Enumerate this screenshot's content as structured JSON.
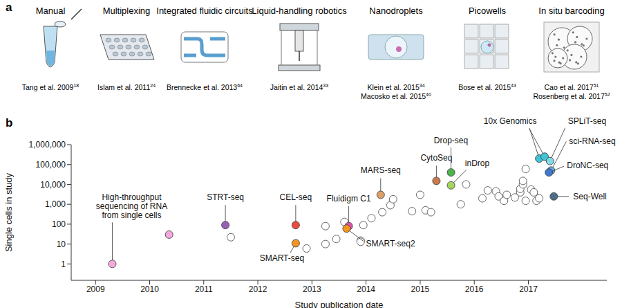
{
  "panel_a": {
    "label": "a",
    "items": [
      {
        "title": "Manual",
        "citations": [
          {
            "text": "Tang et al. 2009",
            "ref": 18
          }
        ]
      },
      {
        "title": "Multiplexing",
        "citations": [
          {
            "text": "Islam et al. 2011",
            "ref": 24
          }
        ]
      },
      {
        "title": "Integrated fluidic circuits",
        "citations": [
          {
            "text": "Brennecke et al. 2013",
            "ref": 64
          }
        ]
      },
      {
        "title": "Liquid-handling robotics",
        "citations": [
          {
            "text": "Jaitin et al. 2014",
            "ref": 33
          }
        ]
      },
      {
        "title": "Nanodroplets",
        "citations": [
          {
            "text": "Klein et al. 2015",
            "ref": 34
          },
          {
            "text": "Macosko et al. 2015",
            "ref": 40
          }
        ]
      },
      {
        "title": "Picowells",
        "citations": [
          {
            "text": "Bose et al. 2015",
            "ref": 43
          }
        ]
      },
      {
        "title": "In situ barcoding",
        "citations": [
          {
            "text": "Cao et al. 2017",
            "ref": 51
          },
          {
            "text": "Rosenberg et al. 2017",
            "ref": 52
          }
        ]
      }
    ]
  },
  "chart_data": {
    "panel_label": "b",
    "type": "scatter",
    "x_label": "Study publication date",
    "y_label": "Single cells in study",
    "log": "y",
    "grid": false,
    "xlim": [
      2008.55,
      2018.45
    ],
    "xticks": [
      2009,
      2010,
      2011,
      2012,
      2013,
      2014,
      2015,
      2016,
      2017
    ],
    "ylim": [
      0.15,
      1000000
    ],
    "yticks": [
      1,
      10,
      100,
      {
        "value": 1000,
        "label": "1,000"
      },
      {
        "value": 10000,
        "label": "10,000"
      },
      {
        "value": 100000,
        "label": "100,000"
      },
      {
        "value": 1000000,
        "label": "1,000,000"
      }
    ],
    "series": [
      {
        "marker": "open",
        "color": "#ffffff",
        "x": [
          2011.5,
          2012.9,
          2013.25,
          2013.25,
          2013.45,
          2013.6,
          2013.9,
          2013.9,
          2013.95,
          2014.1,
          2014.3,
          2014.45,
          2014.5,
          2014.85,
          2015.0,
          2015.1,
          2015.2,
          2015.75,
          2015.85,
          2016.15,
          2016.25,
          2016.4,
          2016.45,
          2016.55,
          2016.6,
          2016.75,
          2016.85,
          2016.85,
          2016.9,
          2016.9,
          2016.95,
          2016.95,
          2017.05,
          2017.1,
          2017.15,
          2017.2
        ],
        "values": [
          22,
          6,
          80,
          10,
          18,
          130,
          15,
          13,
          90,
          200,
          400,
          900,
          1800,
          450,
          3000,
          500,
          400,
          1000,
          10000,
          2000,
          5000,
          4500,
          2500,
          1500,
          3000,
          2200,
          4000,
          6000,
          10000,
          15000,
          60000,
          1500,
          5500,
          4000,
          1500,
          2000
        ]
      },
      {
        "marker": "filled",
        "x": [
          2009.31,
          2010.36,
          2011.4,
          2012.7,
          2012.7,
          2013.68,
          2013.64,
          2014.27,
          2015.3,
          2015.57,
          2015.57,
          2017.2,
          2017.3,
          2017.4,
          2017.42,
          2017.38,
          2017.47
        ],
        "values": [
          1,
          30,
          90,
          90,
          11,
          80,
          60,
          3000,
          15000,
          40000,
          9000,
          200000,
          250000,
          150000,
          50000,
          40000,
          2500
        ],
        "colors": [
          "#f4a9dc",
          "#f4a9dc",
          "#9b5fb5",
          "#ea4b3c",
          "#f5951f",
          "#e34fa6",
          "#f5951f",
          "#d9a068",
          "#c97a4b",
          "#4db34f",
          "#a4d65c",
          "#40c4d6",
          "#40c4d6",
          "#7fdbe9",
          "#6aa8e3",
          "#3f78cf",
          "#4d6f8a"
        ],
        "point_labels": [
          "High-throughput sequencing of RNA from single cells",
          null,
          "STRT-seq",
          "CEL-seq",
          "SMART-seq",
          "Fluidigm C1",
          "SMART-seq2",
          "MARS-seq",
          "CytoSeq",
          "Drop-seq",
          "inDrop",
          "10x Genomics",
          null,
          "SPLiT-seq",
          "sci-RNA-seq",
          "DroNC-seq",
          "Seq-Well"
        ]
      }
    ]
  }
}
